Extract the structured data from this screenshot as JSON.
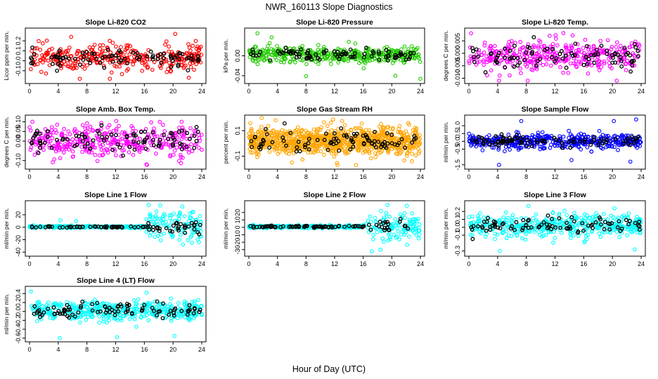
{
  "figure": {
    "title": "NWR_160113  Slope Diagnostics",
    "xlabel": "Hour of Day (UTC)"
  },
  "colors": {
    "red": "#ff0000",
    "green": "#22cc00",
    "magenta": "#ff00ff",
    "orange": "#ffa500",
    "blue": "#0000ff",
    "cyan": "#00ffff",
    "black": "#000000"
  },
  "chart_data": [
    {
      "type": "scatter",
      "title": "Slope Li-820 CO2",
      "ylabel": "Licor ppm per min.",
      "xlim": [
        0,
        24
      ],
      "ylim": [
        -0.2,
        0.3
      ],
      "yticks": [
        -0.1,
        0.0,
        0.1,
        0.2
      ],
      "ytick_labels": [
        "-0.1",
        "0.0",
        "0.1",
        "0.2"
      ],
      "xticks": [
        0,
        4,
        8,
        12,
        16,
        20,
        24
      ],
      "xtick_labels": [
        "0",
        "4",
        "8",
        "12",
        "16",
        "20",
        "24"
      ],
      "color": "red",
      "center": 0.03,
      "spread": 0.07,
      "n": 340,
      "outliers": [
        [
          5.8,
          0.24
        ],
        [
          7.0,
          -0.18
        ],
        [
          20.3,
          0.27
        ],
        [
          22.2,
          -0.17
        ],
        [
          11.2,
          -0.18
        ]
      ]
    },
    {
      "type": "scatter",
      "title": "Slope Li-820 Pressure",
      "ylabel": "kPa per min.",
      "xlim": [
        0,
        24
      ],
      "ylim": [
        -0.05,
        0.05
      ],
      "yticks": [
        -0.04,
        0.0
      ],
      "ytick_labels": [
        "-0.04",
        "0.00"
      ],
      "xticks": [
        0,
        4,
        8,
        12,
        16,
        20,
        24
      ],
      "xtick_labels": [
        "0",
        "4",
        "8",
        "12",
        "16",
        "20",
        "24"
      ],
      "color": "green",
      "center": 0.002,
      "spread": 0.009,
      "n": 420,
      "outliers": [
        [
          1.2,
          0.045
        ],
        [
          3.2,
          0.037
        ],
        [
          8.0,
          -0.041
        ],
        [
          24.0,
          -0.046
        ],
        [
          20.5,
          -0.04
        ]
      ]
    },
    {
      "type": "scatter",
      "title": "Slope Li-820 Temp.",
      "ylabel": "degrees C per min.",
      "xlim": [
        0,
        24
      ],
      "ylim": [
        -0.011,
        0.009
      ],
      "yticks": [
        -0.01,
        -0.005,
        0.0,
        0.005
      ],
      "ytick_labels": [
        "-0.010",
        "-0.005",
        "0.000",
        "0.005"
      ],
      "xticks": [
        0,
        4,
        8,
        12,
        16,
        20,
        24
      ],
      "xtick_labels": [
        "0",
        "4",
        "8",
        "12",
        "16",
        "20",
        "24"
      ],
      "color": "magenta",
      "center": -0.001,
      "spread": 0.0035,
      "n": 380,
      "outliers": [
        [
          0.3,
          0.008
        ],
        [
          4.2,
          -0.011
        ],
        [
          8.2,
          -0.011
        ],
        [
          20.6,
          -0.011
        ]
      ]
    },
    {
      "type": "scatter",
      "title": "Slope Amb. Box Temp.",
      "ylabel": "degrees C per min.",
      "xlim": [
        0,
        24
      ],
      "ylim": [
        -0.13,
        0.12
      ],
      "yticks": [
        -0.1,
        0.0,
        0.05,
        0.1
      ],
      "ytick_labels": [
        "-0.10",
        "0.00",
        "0.05",
        "0.10"
      ],
      "xticks": [
        0,
        4,
        8,
        12,
        16,
        20,
        24
      ],
      "xtick_labels": [
        "0",
        "4",
        "8",
        "12",
        "16",
        "20",
        "24"
      ],
      "color": "magenta",
      "center": 0.005,
      "spread": 0.045,
      "n": 380,
      "outliers": [
        [
          0.4,
          0.1
        ],
        [
          16.3,
          -0.12
        ],
        [
          21.2,
          0.1
        ]
      ]
    },
    {
      "type": "scatter",
      "title": "Slope Gas Stream RH",
      "ylabel": "percent per min.",
      "xlim": [
        0,
        24
      ],
      "ylim": [
        -0.18,
        0.2
      ],
      "yticks": [
        -0.1,
        0.1
      ],
      "ytick_labels": [
        "-0.1",
        "0.1"
      ],
      "xticks": [
        0,
        4,
        8,
        12,
        16,
        20,
        24
      ],
      "xtick_labels": [
        "0",
        "4",
        "8",
        "12",
        "16",
        "20",
        "24"
      ],
      "color": "orange",
      "center": 0.02,
      "spread": 0.06,
      "n": 900,
      "outliers": [
        [
          0.2,
          0.16
        ],
        [
          1.8,
          0.2
        ],
        [
          12.4,
          -0.17
        ],
        [
          15.0,
          -0.17
        ],
        [
          22.3,
          0.16
        ]
      ]
    },
    {
      "type": "scatter",
      "title": "Slope Sample Flow",
      "ylabel": "ml/min per min.",
      "xlim": [
        0,
        24
      ],
      "ylim": [
        -1.6,
        1.5
      ],
      "yticks": [
        -1.5,
        -0.5,
        0.0,
        0.5,
        1.0
      ],
      "ytick_labels": [
        "-1.5",
        "-0.5",
        "0.0",
        "0.5",
        "1.0"
      ],
      "xticks": [
        0,
        4,
        8,
        12,
        16,
        20,
        24
      ],
      "xtick_labels": [
        "0",
        "4",
        "8",
        "12",
        "16",
        "20",
        "24"
      ],
      "color": "blue",
      "center": 0.0,
      "spread": 0.25,
      "n": 450,
      "outliers": [
        [
          7.3,
          1.3
        ],
        [
          20.2,
          1.3
        ],
        [
          23.3,
          1.4
        ],
        [
          14.3,
          -1.2
        ],
        [
          4.2,
          -1.5
        ],
        [
          22.5,
          -1.3
        ]
      ]
    },
    {
      "type": "scatter",
      "title": "Slope Line 1 Flow",
      "ylabel": "ml/min per min.",
      "xlim": [
        0,
        24
      ],
      "ylim": [
        -42,
        38
      ],
      "yticks": [
        -40,
        -20,
        0,
        20
      ],
      "ytick_labels": [
        "-40",
        "-20",
        "0",
        "20"
      ],
      "xticks": [
        0,
        4,
        8,
        12,
        16,
        20,
        24
      ],
      "xtick_labels": [
        "0",
        "4",
        "8",
        "12",
        "16",
        "20",
        "24"
      ],
      "color": "cyan",
      "center": 0.5,
      "spread": 1.0,
      "late_spread": 15,
      "late_start": 16.3,
      "n": 380,
      "outliers": [
        [
          4.3,
          11
        ],
        [
          6.5,
          10
        ],
        [
          18.2,
          35
        ],
        [
          21.3,
          33
        ]
      ]
    },
    {
      "type": "scatter",
      "title": "Slope Line 2 Flow",
      "ylabel": "ml/min per min.",
      "xlim": [
        0,
        24
      ],
      "ylim": [
        -35,
        32
      ],
      "yticks": [
        -30,
        -20,
        -10,
        0,
        10,
        20
      ],
      "ytick_labels": [
        "-30",
        "-20",
        "-10",
        "0",
        "10",
        "20"
      ],
      "xticks": [
        0,
        4,
        8,
        12,
        16,
        20,
        24
      ],
      "xtick_labels": [
        "0",
        "4",
        "8",
        "12",
        "16",
        "20",
        "24"
      ],
      "color": "cyan",
      "center": 0.8,
      "spread": 1.0,
      "late_spread": 10,
      "late_start": 16.0,
      "n": 380,
      "outliers": [
        [
          17.2,
          -32
        ],
        [
          18.4,
          -30
        ],
        [
          19.4,
          30
        ],
        [
          22.1,
          29
        ]
      ]
    },
    {
      "type": "scatter",
      "title": "Slope Line 3 Flow",
      "ylabel": "ml/min per min.",
      "xlim": [
        0,
        24
      ],
      "ylim": [
        -0.33,
        0.3
      ],
      "yticks": [
        -0.3,
        -0.1,
        0.0,
        0.1,
        0.2
      ],
      "ytick_labels": [
        "-0.3",
        "-0.1",
        "0.0",
        "0.1",
        "0.2"
      ],
      "xticks": [
        0,
        4,
        8,
        12,
        16,
        20,
        24
      ],
      "xtick_labels": [
        "0",
        "4",
        "8",
        "12",
        "16",
        "20",
        "24"
      ],
      "color": "cyan",
      "center": 0.02,
      "spread": 0.08,
      "n": 420,
      "outliers": [
        [
          4.3,
          -0.3
        ],
        [
          8.3,
          0.27
        ],
        [
          20.3,
          0.24
        ],
        [
          23.1,
          -0.28
        ]
      ]
    },
    {
      "type": "scatter",
      "title": "Slope Line 4 (LT) Flow",
      "ylabel": "ml/min per min.",
      "xlim": [
        0,
        24
      ],
      "ylim": [
        -0.62,
        0.5
      ],
      "yticks": [
        -0.6,
        -0.4,
        -0.2,
        0.0,
        0.2,
        0.4
      ],
      "ytick_labels": [
        "-0.6",
        "-0.4",
        "-0.2",
        "0.0",
        "0.2",
        "0.4"
      ],
      "xticks": [
        0,
        4,
        8,
        12,
        16,
        20,
        24
      ],
      "xtick_labels": [
        "0",
        "4",
        "8",
        "12",
        "16",
        "20",
        "24"
      ],
      "color": "cyan",
      "center": 0.02,
      "spread": 0.12,
      "n": 420,
      "outliers": [
        [
          0.2,
          0.45
        ],
        [
          4.2,
          -0.6
        ],
        [
          12.2,
          -0.58
        ],
        [
          16.3,
          0.42
        ],
        [
          20.2,
          -0.55
        ]
      ]
    }
  ]
}
